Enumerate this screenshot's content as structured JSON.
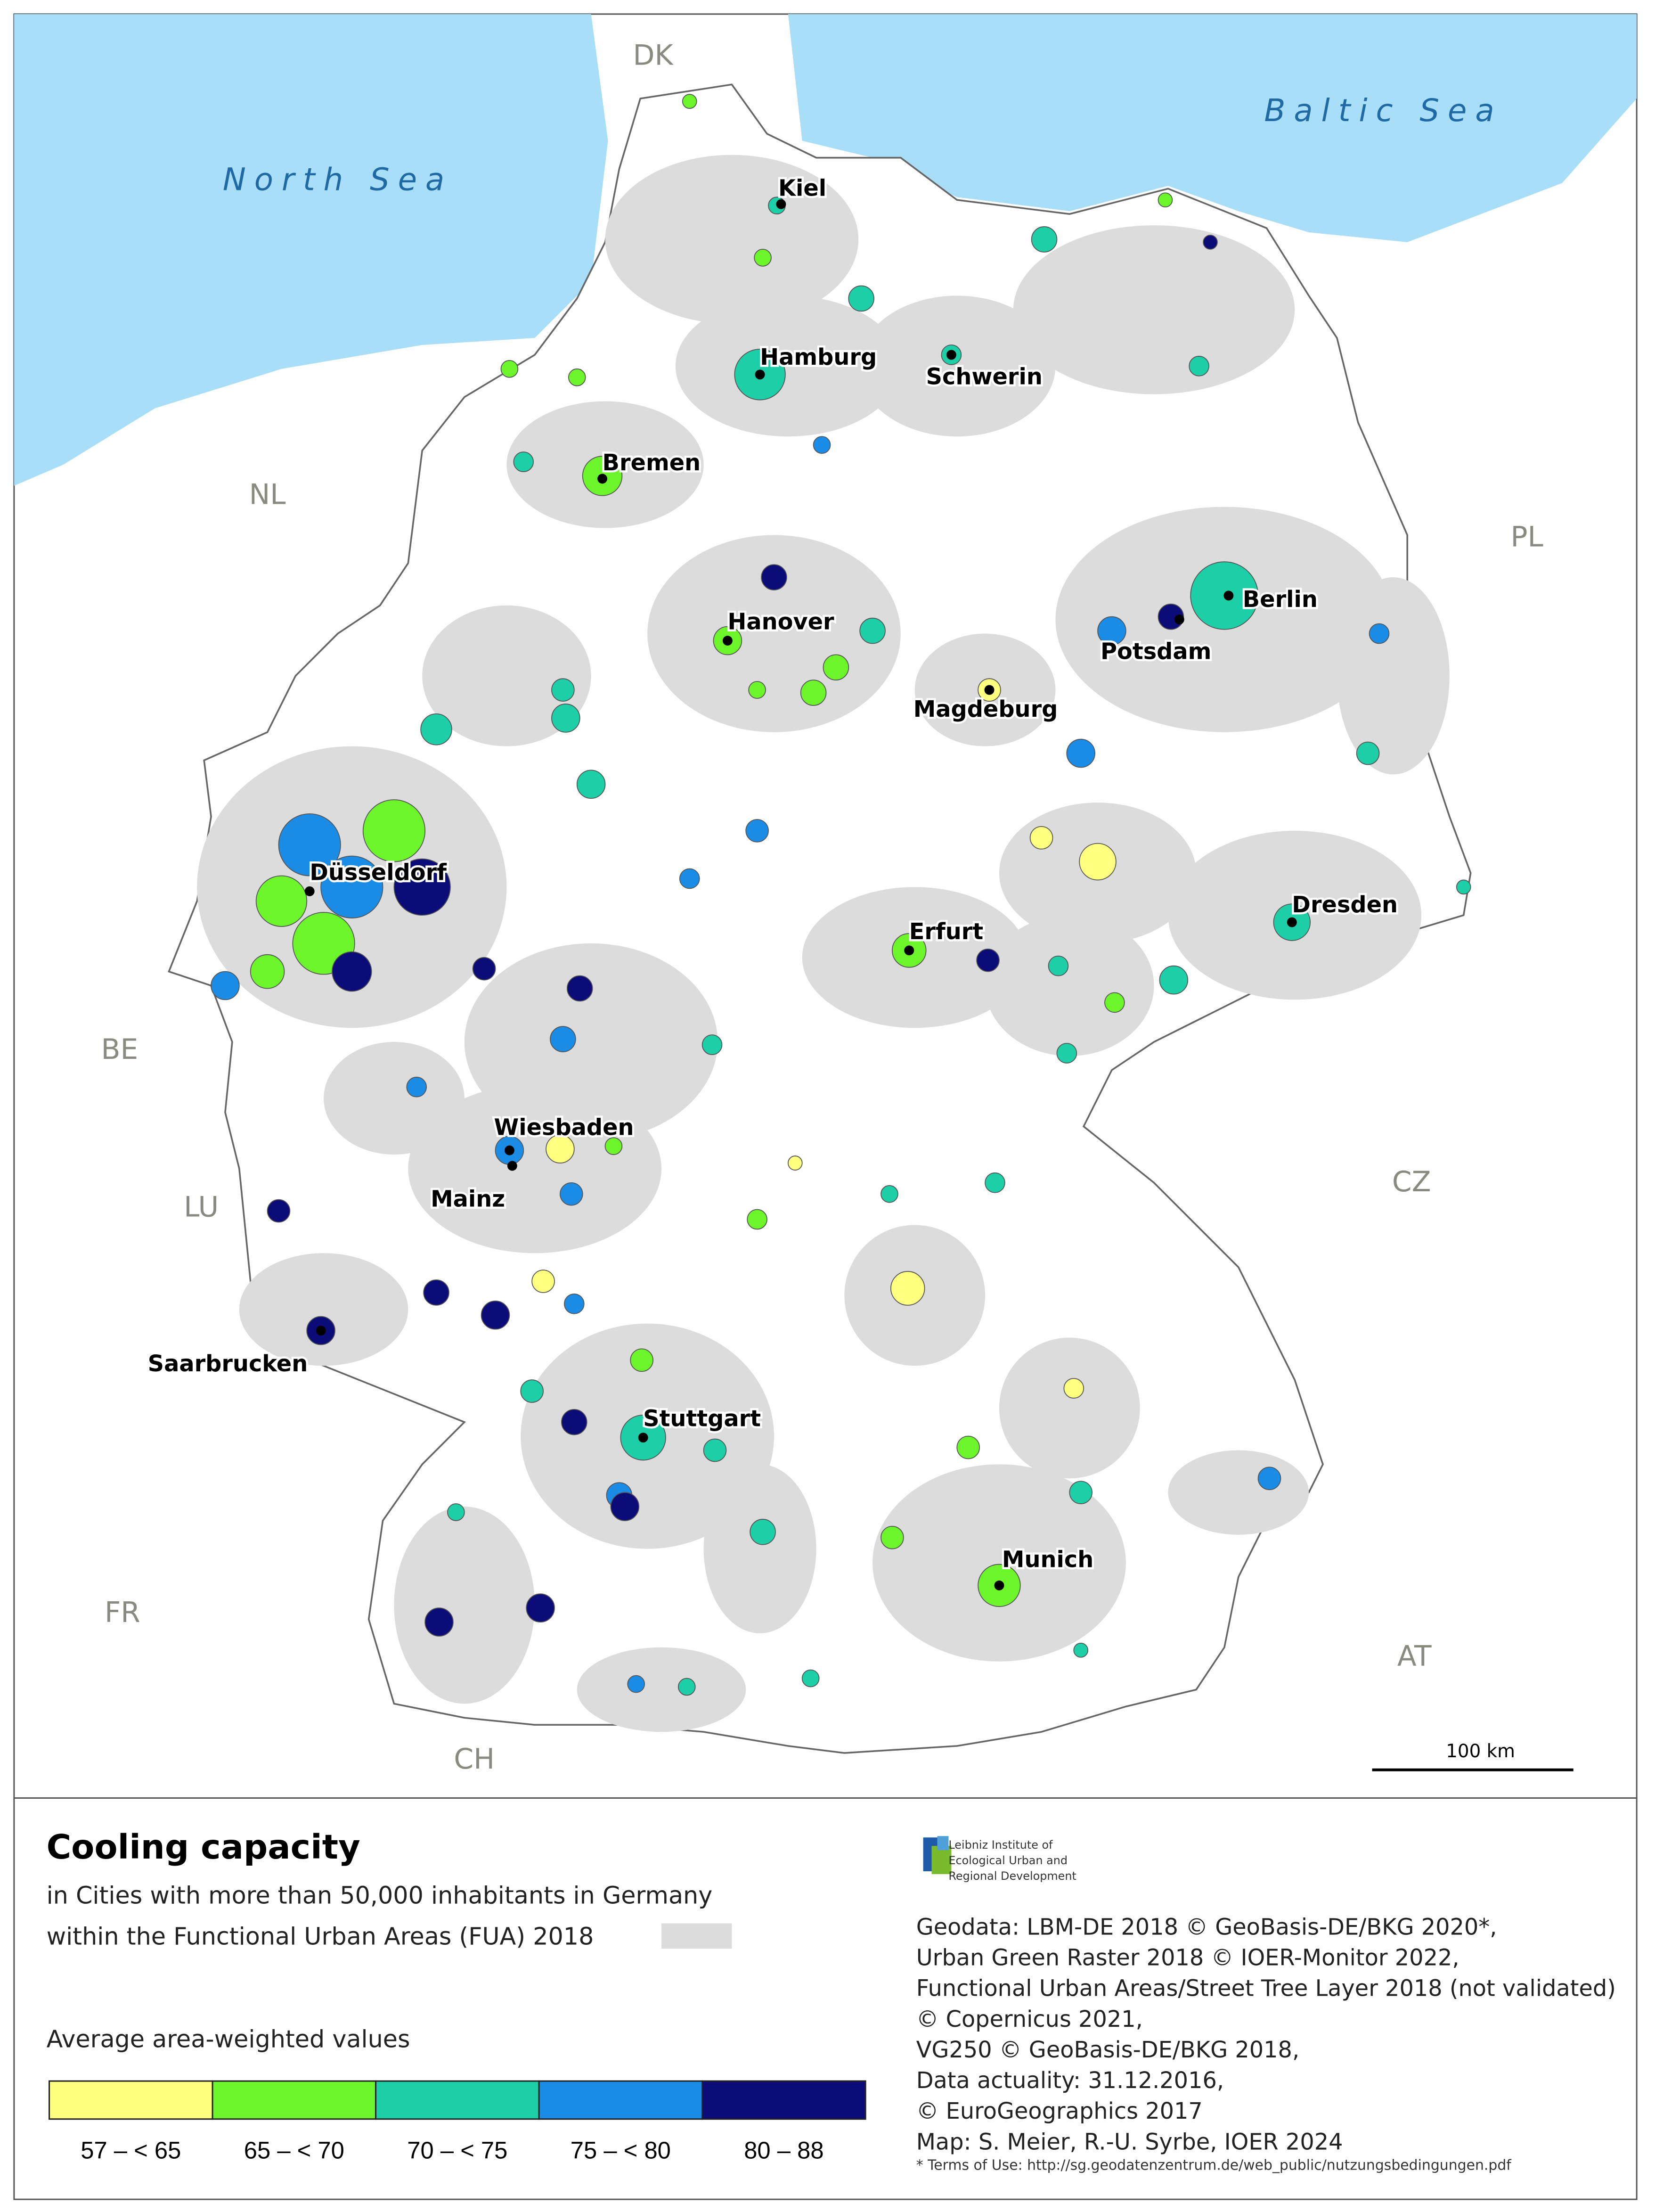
{
  "map": {
    "sea_labels": [
      "North Sea",
      "Baltic Sea"
    ],
    "country_labels": [
      "DK",
      "NL",
      "PL",
      "BE",
      "LU",
      "CZ",
      "FR",
      "AT",
      "CH"
    ],
    "city_labels": [
      "Kiel",
      "Hamburg",
      "Schwerin",
      "Bremen",
      "Hanover",
      "Berlin",
      "Potsdam",
      "Magdeburg",
      "Düsseldorf",
      "Dresden",
      "Erfurt",
      "Wiesbaden",
      "Mainz",
      "Saarbrucken",
      "Stuttgart",
      "Munich"
    ],
    "scale_bar": "100 km",
    "sea_color": "#a8def7",
    "fua_color": "#dcdcdc"
  },
  "legend": {
    "title": "Cooling capacity",
    "subtitle": [
      "in Cities with more than 50,000 inhabitants  in Germany",
      "within the Functional Urban Areas (FUA) 2018"
    ],
    "heading": "Average area-weighted values",
    "classes": [
      {
        "label": "57 – < 65",
        "color": "#ffff80"
      },
      {
        "label": "65  – < 70",
        "color": "#6cf52a"
      },
      {
        "label": "70  – < 75",
        "color": "#1ccfa6"
      },
      {
        "label": "75  – < 80",
        "color": "#1a8ce6"
      },
      {
        "label": "80  –  88",
        "color": "#0c0c78"
      }
    ]
  },
  "institute": [
    "Leibniz Institute of",
    "Ecological Urban and",
    "Regional Development"
  ],
  "credits": [
    "Geodata: LBM-DE 2018 © GeoBasis-DE/BKG 2020*,",
    "Urban Green Raster 2018 © IOER-Monitor 2022,",
    "Functional Urban Areas/Street Tree Layer 2018 (not validated)",
    "© Copernicus 2021,",
    "VG250 © GeoBasis-DE/BKG 2018,",
    "Data actuality: 31.12.2016,",
    "© EuroGeographics 2017",
    "Map: S. Meier, R.-U. Syrbe, IOER 2024"
  ],
  "terms": "* Terms of Use: http://sg.geodatenzentrum.de/web_public/nutzungsbedingungen.pdf"
}
